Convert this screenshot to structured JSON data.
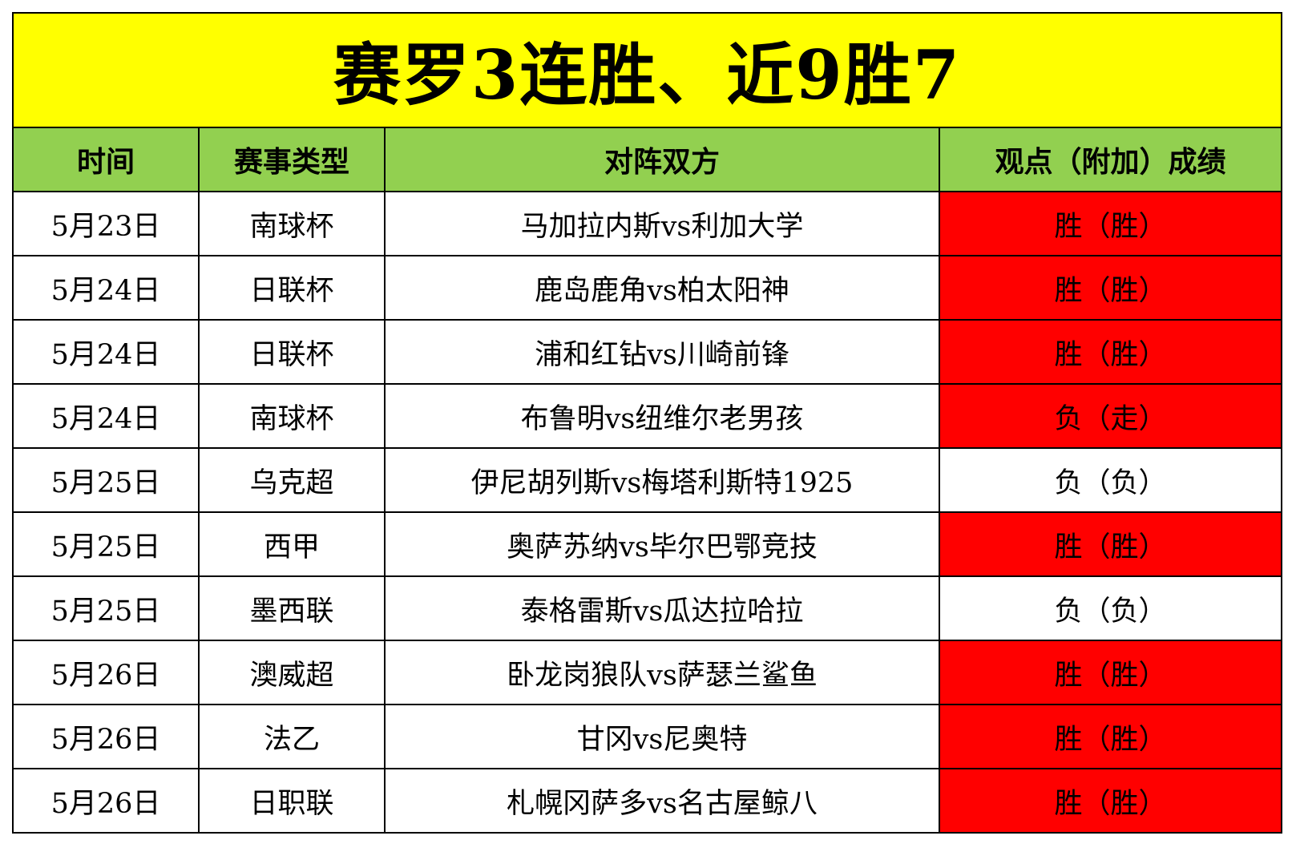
{
  "title": "赛罗3连胜、近9胜7",
  "colors": {
    "title_bg": "#ffff00",
    "header_bg": "#92d050",
    "highlight_bg": "#ff0000",
    "plain_bg": "#ffffff"
  },
  "headers": [
    "时间",
    "赛事类型",
    "对阵双方",
    "观点（附加）成绩"
  ],
  "rows": [
    {
      "date": "5月23日",
      "league": "南球杯",
      "match": "马加拉内斯vs利加大学",
      "result": "胜（胜）",
      "highlight": true
    },
    {
      "date": "5月24日",
      "league": "日联杯",
      "match": "鹿岛鹿角vs柏太阳神",
      "result": "胜（胜）",
      "highlight": true
    },
    {
      "date": "5月24日",
      "league": "日联杯",
      "match": "浦和红钻vs川崎前锋",
      "result": "胜（胜）",
      "highlight": true
    },
    {
      "date": "5月24日",
      "league": "南球杯",
      "match": "布鲁明vs纽维尔老男孩",
      "result": "负（走）",
      "highlight": true
    },
    {
      "date": "5月25日",
      "league": "乌克超",
      "match": "伊尼胡列斯vs梅塔利斯特1925",
      "result": "负（负）",
      "highlight": false
    },
    {
      "date": "5月25日",
      "league": "西甲",
      "match": "奥萨苏纳vs毕尔巴鄂竞技",
      "result": "胜（胜）",
      "highlight": true
    },
    {
      "date": "5月25日",
      "league": "墨西联",
      "match": "泰格雷斯vs瓜达拉哈拉",
      "result": "负（负）",
      "highlight": false
    },
    {
      "date": "5月26日",
      "league": "澳威超",
      "match": "卧龙岗狼队vs萨瑟兰鲨鱼",
      "result": "胜（胜）",
      "highlight": true
    },
    {
      "date": "5月26日",
      "league": "法乙",
      "match": "甘冈vs尼奥特",
      "result": "胜（胜）",
      "highlight": true
    },
    {
      "date": "5月26日",
      "league": "日职联",
      "match": "札幌冈萨多vs名古屋鲸八",
      "result": "胜（胜）",
      "highlight": true
    }
  ]
}
